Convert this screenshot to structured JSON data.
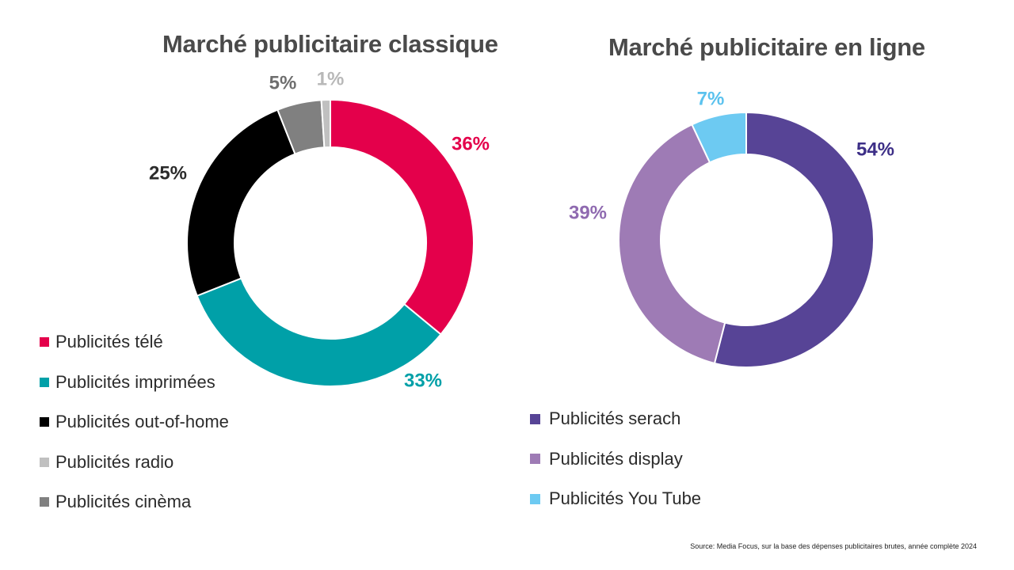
{
  "chart_data": [
    {
      "type": "pie",
      "subtype": "donut",
      "title": "Marché publicitaire classique",
      "categories": [
        "Publicités télé",
        "Publicités imprimées",
        "Publicités out-of-home",
        "Publicités cinèma",
        "Publicités radio"
      ],
      "values": [
        36,
        33,
        25,
        5,
        1
      ],
      "labels": [
        "36%",
        "33%",
        "25%",
        "5%",
        "1%"
      ],
      "colors": [
        "#e4004b",
        "#00a0a8",
        "#000000",
        "#808080",
        "#c0c0c0"
      ],
      "legend_position": "bottom-left",
      "legend": [
        {
          "label": "Publicités télé",
          "color": "#e4004b"
        },
        {
          "label": "Publicités imprimées",
          "color": "#00a0a8"
        },
        {
          "label": "Publicités out-of-home",
          "color": "#000000"
        },
        {
          "label": "Publicités radio",
          "color": "#c0c0c0"
        },
        {
          "label": "Publicités cinèma",
          "color": "#808080"
        }
      ]
    },
    {
      "type": "pie",
      "subtype": "donut",
      "title": "Marché publicitaire en ligne",
      "categories": [
        "Publicités serach",
        "Publicités display",
        "Publicités You Tube"
      ],
      "values": [
        54,
        39,
        7
      ],
      "labels": [
        "54%",
        "39%",
        "7%"
      ],
      "colors": [
        "#574496",
        "#9e7bb5",
        "#6dcaf2"
      ],
      "label_colors": [
        "#3d2f87",
        "#8f6ab0",
        "#5bc2ee"
      ],
      "legend_position": "bottom",
      "legend": [
        {
          "label": "Publicités serach",
          "color": "#574496"
        },
        {
          "label": "Publicités display",
          "color": "#9e7bb5"
        },
        {
          "label": "Publicités You Tube",
          "color": "#6dcaf2"
        }
      ]
    }
  ],
  "label_colors_left": [
    "#e4004b",
    "#00a0a8",
    "#2b2b2b",
    "#6e6e6e",
    "#b8b8b8"
  ],
  "source": "Source: Media Focus, sur la base des dépenses publicitaires brutes, année complète 2024"
}
